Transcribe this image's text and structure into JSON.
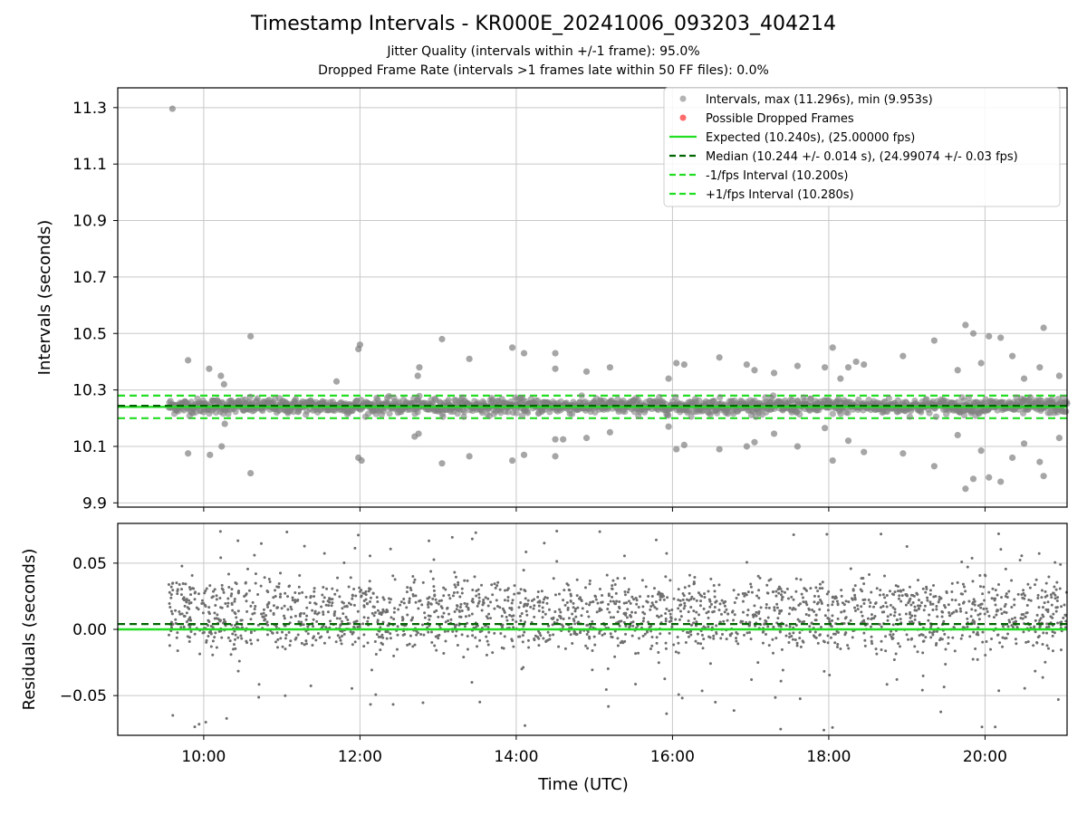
{
  "chart_data": [
    {
      "type": "scatter",
      "title": "Timestamp Intervals - KR000E_20241006_093203_404214",
      "subtitle_lines": [
        "Jitter Quality (intervals within +/-1 frame): 95.0%",
        "Dropped Frame Rate (intervals >1 frames late within 50 FF files): 0.0%"
      ],
      "xlabel": "",
      "ylabel": "Intervals (seconds)",
      "xlim_hours": [
        8.9,
        21.05
      ],
      "ylim": [
        9.885,
        11.37
      ],
      "x_ticks": [
        10,
        12,
        14,
        16,
        18,
        20
      ],
      "x_tick_labels": [
        "10:00",
        "12:00",
        "14:00",
        "16:00",
        "18:00",
        "20:00"
      ],
      "y_ticks": [
        9.9,
        10.1,
        10.3,
        10.5,
        10.7,
        10.9,
        11.1,
        11.3
      ],
      "y_tick_labels": [
        "9.9",
        "10.1",
        "10.3",
        "10.5",
        "10.7",
        "10.9",
        "11.1",
        "11.3"
      ],
      "grid": true,
      "legend_position": "top-right",
      "legend": [
        "Intervals, max (11.296s), min (9.953s)",
        "Possible Dropped Frames",
        "Expected (10.240s), (25.00000 fps)",
        "Median (10.244 +/- 0.014 s), (24.99074 +/- 0.03 fps)",
        "-1/fps Interval (10.200s)",
        "+1/fps Interval (10.280s)"
      ],
      "lines": {
        "expected": 10.24,
        "median": 10.244,
        "minus_one_fps": 10.2,
        "plus_one_fps": 10.28
      },
      "time_range_hours": [
        9.553,
        21.05
      ],
      "intervals": {
        "max": 11.296,
        "min": 9.953,
        "max_time_hours": 9.6,
        "bulk_low": 10.205,
        "bulk_high": 10.28,
        "outliers": [
          [
            9.8,
            10.405
          ],
          [
            9.8,
            10.075
          ],
          [
            10.07,
            10.375
          ],
          [
            10.08,
            10.07
          ],
          [
            10.22,
            10.35
          ],
          [
            10.26,
            10.32
          ],
          [
            10.27,
            10.18
          ],
          [
            10.23,
            10.1
          ],
          [
            10.6,
            10.49
          ],
          [
            10.6,
            10.005
          ],
          [
            11.7,
            10.33
          ],
          [
            11.98,
            10.445
          ],
          [
            12.0,
            10.46
          ],
          [
            11.98,
            10.06
          ],
          [
            12.02,
            10.05
          ],
          [
            12.7,
            10.135
          ],
          [
            12.75,
            10.145
          ],
          [
            12.74,
            10.35
          ],
          [
            12.76,
            10.38
          ],
          [
            13.05,
            10.48
          ],
          [
            13.05,
            10.04
          ],
          [
            13.4,
            10.41
          ],
          [
            13.4,
            10.065
          ],
          [
            13.95,
            10.45
          ],
          [
            13.95,
            10.05
          ],
          [
            14.1,
            10.43
          ],
          [
            14.1,
            10.07
          ],
          [
            14.5,
            10.43
          ],
          [
            14.5,
            10.375
          ],
          [
            14.5,
            10.125
          ],
          [
            14.5,
            10.065
          ],
          [
            14.6,
            10.125
          ],
          [
            14.9,
            10.365
          ],
          [
            14.9,
            10.13
          ],
          [
            15.2,
            10.38
          ],
          [
            15.2,
            10.15
          ],
          [
            15.95,
            10.34
          ],
          [
            15.95,
            10.17
          ],
          [
            16.05,
            10.395
          ],
          [
            16.05,
            10.09
          ],
          [
            16.15,
            10.39
          ],
          [
            16.15,
            10.105
          ],
          [
            16.6,
            10.415
          ],
          [
            16.6,
            10.09
          ],
          [
            16.95,
            10.39
          ],
          [
            16.95,
            10.1
          ],
          [
            17.05,
            10.37
          ],
          [
            17.05,
            10.115
          ],
          [
            17.3,
            10.36
          ],
          [
            17.3,
            10.145
          ],
          [
            17.6,
            10.385
          ],
          [
            17.6,
            10.1
          ],
          [
            17.95,
            10.38
          ],
          [
            17.95,
            10.165
          ],
          [
            18.05,
            10.45
          ],
          [
            18.05,
            10.05
          ],
          [
            18.15,
            10.34
          ],
          [
            18.25,
            10.38
          ],
          [
            18.25,
            10.12
          ],
          [
            18.35,
            10.4
          ],
          [
            18.45,
            10.39
          ],
          [
            18.45,
            10.08
          ],
          [
            18.95,
            10.42
          ],
          [
            18.95,
            10.075
          ],
          [
            19.35,
            10.475
          ],
          [
            19.35,
            10.03
          ],
          [
            19.65,
            10.37
          ],
          [
            19.65,
            10.14
          ],
          [
            19.75,
            10.53
          ],
          [
            19.75,
            9.95
          ],
          [
            19.85,
            10.5
          ],
          [
            19.85,
            9.985
          ],
          [
            19.95,
            10.395
          ],
          [
            19.95,
            10.085
          ],
          [
            20.05,
            10.49
          ],
          [
            20.05,
            9.99
          ],
          [
            20.2,
            10.485
          ],
          [
            20.2,
            9.975
          ],
          [
            20.35,
            10.42
          ],
          [
            20.35,
            10.06
          ],
          [
            20.5,
            10.34
          ],
          [
            20.5,
            10.11
          ],
          [
            20.7,
            10.38
          ],
          [
            20.7,
            10.045
          ],
          [
            20.75,
            10.52
          ],
          [
            20.75,
            9.995
          ],
          [
            20.95,
            10.35
          ],
          [
            20.95,
            10.13
          ]
        ]
      }
    },
    {
      "type": "scatter",
      "title": "",
      "xlabel": "Time (UTC)",
      "ylabel": "Residuals (seconds)",
      "xlim_hours": [
        8.9,
        21.05
      ],
      "ylim": [
        -0.08,
        0.08
      ],
      "x_ticks": [
        10,
        12,
        14,
        16,
        18,
        20
      ],
      "x_tick_labels": [
        "10:00",
        "12:00",
        "14:00",
        "16:00",
        "18:00",
        "20:00"
      ],
      "y_ticks": [
        -0.05,
        0.0,
        0.05
      ],
      "y_tick_labels": [
        "−0.05",
        "0.00",
        "0.05"
      ],
      "grid": true,
      "lines": {
        "zero": 0.0,
        "median_offset": 0.004
      },
      "residuals": {
        "clusters": [
          0.0,
          0.022
        ],
        "typical_spread": 0.008,
        "max": 0.078,
        "min": -0.078
      }
    }
  ],
  "colors": {
    "points": "#808080",
    "expected": "#22dd22",
    "median": "#006400",
    "fps_band": "#22dd22",
    "dropped": "#ff6b6b",
    "grid": "#c8c8c8"
  }
}
